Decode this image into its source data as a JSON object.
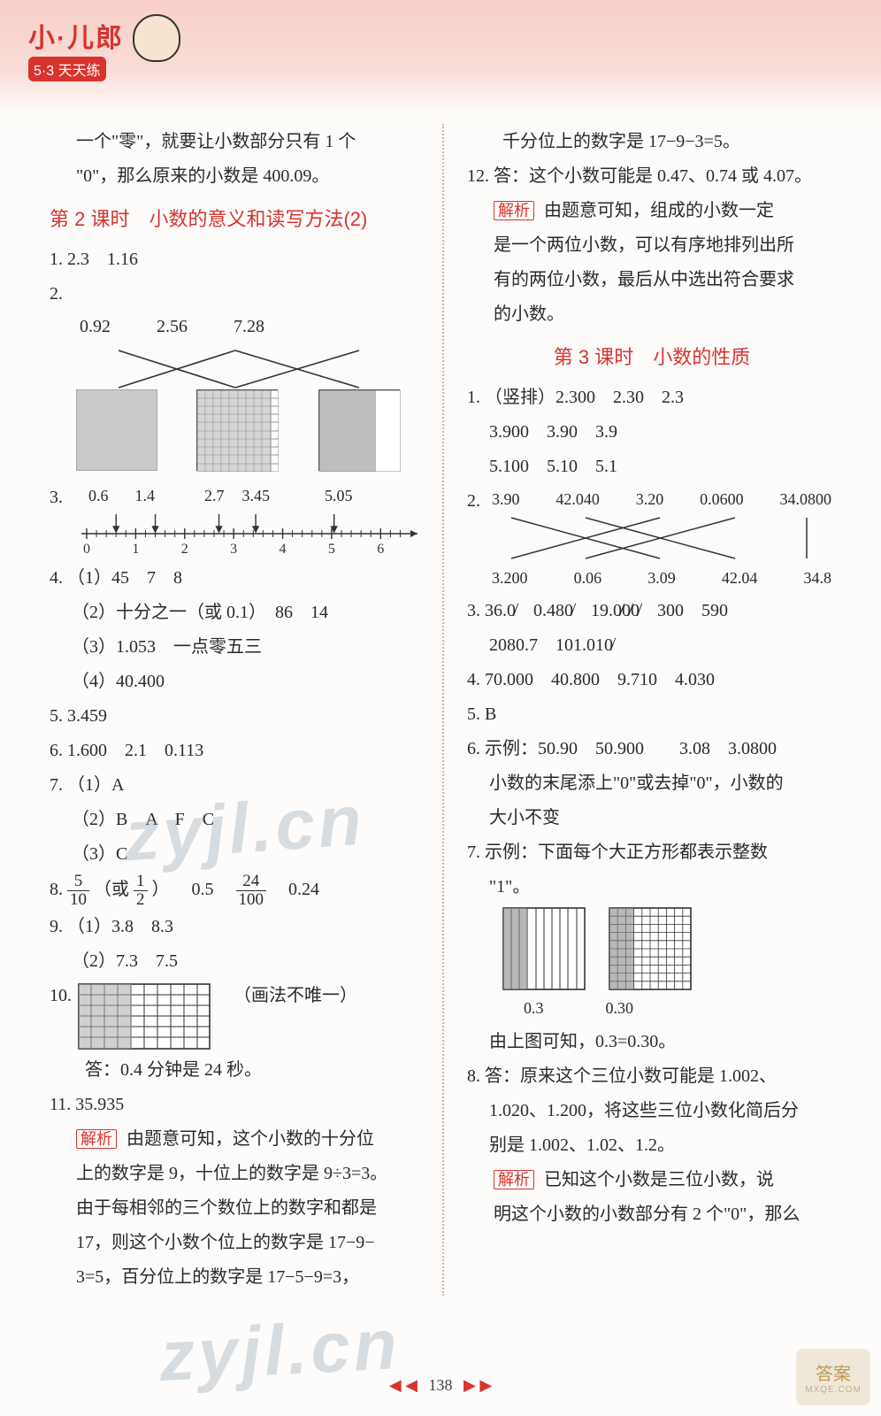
{
  "logo": {
    "top": "小·儿郎",
    "sub": "5·3 天天练"
  },
  "left": {
    "intro1": "一个\"零\"，就要让小数部分只有 1 个",
    "intro2": "\"0\"，那么原来的小数是 400.09。",
    "title": "第 2 课时　小数的意义和读写方法(2)",
    "q1": "1.  2.3　1.16",
    "q2": {
      "label": "2.",
      "vals": [
        "0.92",
        "2.56",
        "7.28"
      ]
    },
    "q3": {
      "label": "3.",
      "vals": [
        "0.6",
        "1.4",
        "2.7",
        "3.45",
        "5.05"
      ]
    },
    "numberline": {
      "min": 0,
      "max": 6.5,
      "ticks": [
        0,
        1,
        2,
        3,
        4,
        5,
        6
      ],
      "points": [
        0.6,
        1.4,
        2.7,
        3.45,
        5.05
      ]
    },
    "q4_1": "4. （1）45　7　8",
    "q4_2": "　 （2）十分之一（或 0.1）　86　14",
    "q4_3": "　 （3）1.053　一点零五三",
    "q4_4": "　 （4）40.400",
    "q5": "5.  3.459",
    "q6": "6.  1.600　2.1　0.113",
    "q7_1": "7. （1）A",
    "q7_2": "　 （2）B　A　F　C",
    "q7_3": "　 （3）C",
    "q8pre": "8. ",
    "q8mid": "　0.5　",
    "q8post": "　0.24",
    "q9_1": "9. （1）3.8　8.3",
    "q9_2": "　 （2）7.3　7.5",
    "q10": "10.",
    "q10note": "（画法不唯一）",
    "q10ans": "　　答：0.4 分钟是 24 秒。",
    "q11": "11.  35.935",
    "q11a": "由题意可知，这个小数的十分位",
    "q11b": "上的数字是 9，十位上的数字是 9÷3=3。",
    "q11c": "由于每相邻的三个数位上的数字和都是",
    "q11d": "17，则这个小数个位上的数字是 17−9−",
    "q11e": "3=5，百分位上的数字是 17−5−9=3，"
  },
  "right": {
    "cont": "　　千分位上的数字是 17−9−3=5。",
    "q12": "12. 答：这个小数可能是 0.47、0.74 或 4.07。",
    "q12a": "由题意可知，组成的小数一定",
    "q12b": "是一个两位小数，可以有序地排列出所",
    "q12c": "有的两位小数，最后从中选出符合要求",
    "q12d": "的小数。",
    "title": "第 3 课时　小数的性质",
    "r1a": "1. （竖排）2.300　2.30　2.3",
    "r1b": "　  3.900　3.90　3.9",
    "r1c": "　  5.100　5.10　5.1",
    "r2": {
      "label": "2.",
      "top": [
        "3.90",
        "42.040",
        "3.20",
        "0.0600",
        "34.0800"
      ],
      "bot": [
        "3.200",
        "0.06",
        "3.09",
        "42.04",
        "34.8"
      ]
    },
    "r3a": "3.  36.0̸　0.480̸　19.0̸0̸0̸　300　590",
    "r3b": "　  2080.7　101.010̸",
    "r4": "4.  70.000　40.800　9.710　4.030",
    "r5": "5.  B",
    "r6a": "6.  示例：50.90　50.900　　3.08　3.0800",
    "r6b": "　  小数的末尾添上\"0\"或去掉\"0\"，小数的",
    "r6c": "　  大小不变",
    "r7a": "7.  示例：下面每个大正方形都表示整数",
    "r7b": "　  \"1\"。",
    "r7vals": [
      "0.3",
      "0.30"
    ],
    "r7c": "　  由上图可知，0.3=0.30。",
    "r8a": "8.  答：原来这个三位小数可能是 1.002、",
    "r8b": "　  1.020、1.200，将这些三位小数化简后分",
    "r8c": "　  别是 1.002、1.02、1.2。",
    "r8d": "已知这个小数是三位小数，说",
    "r8e": "明这个小数的小数部分有 2 个\"0\"，那么"
  },
  "jiexi": "解析",
  "pagenum": "138",
  "corner": {
    "main": "答案",
    "sub": "MXQE.COM"
  },
  "watermark": "zyjl.cn",
  "colors": {
    "accent": "#d7342f",
    "text": "#2a2a2a",
    "band": "#f7cfc8",
    "grid": "#6a6a6a"
  }
}
